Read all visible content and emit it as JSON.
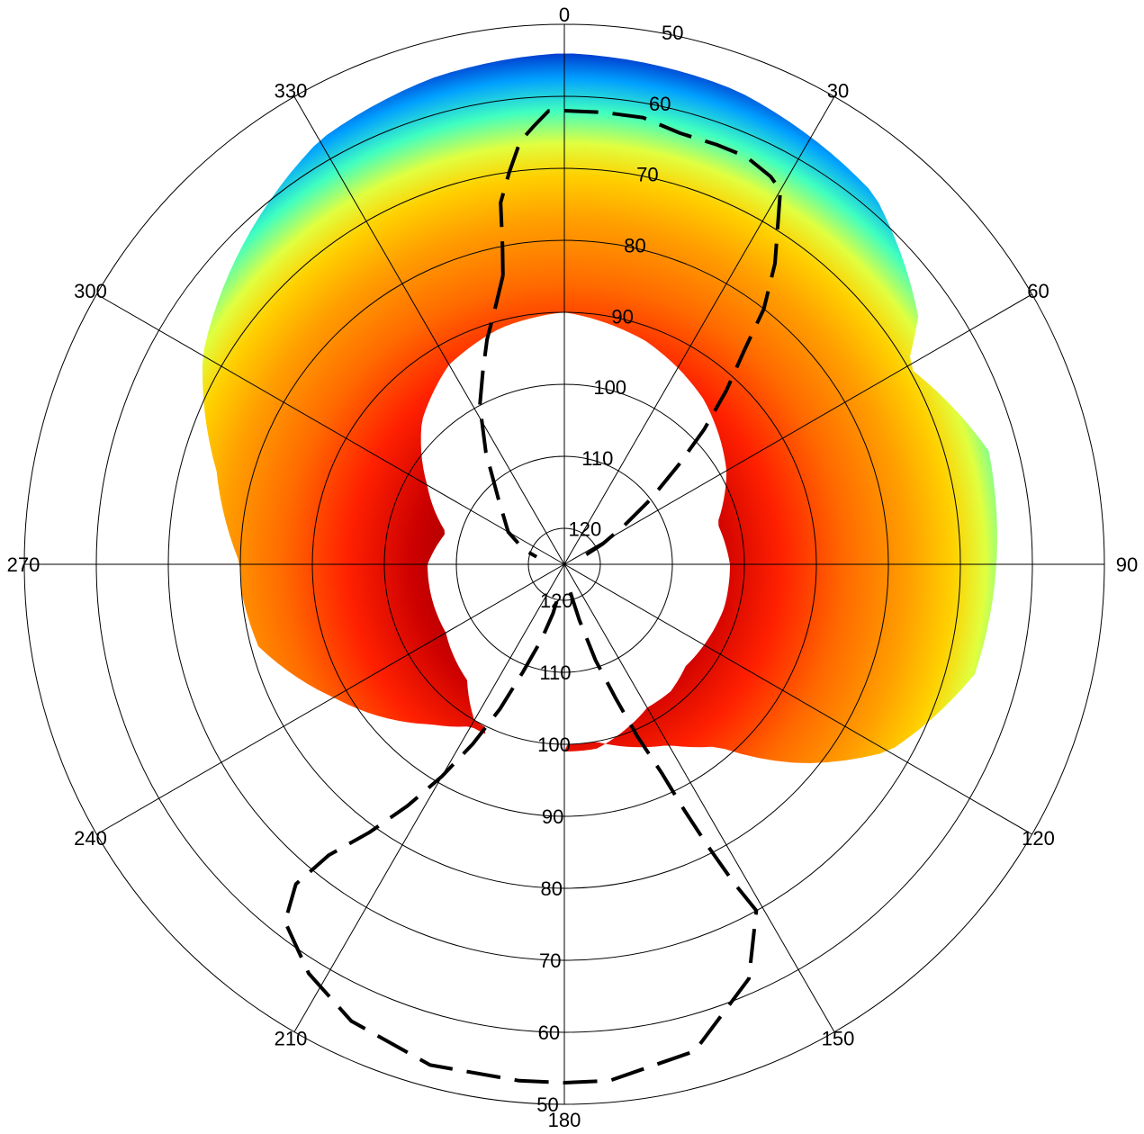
{
  "chart_data": {
    "type": "heatmap",
    "projection": "polar",
    "title": "",
    "angular_axis": {
      "direction": "clockwise",
      "zero_at": "top",
      "tick_values": [
        0,
        30,
        60,
        90,
        120,
        150,
        180,
        210,
        240,
        270,
        300,
        330
      ],
      "tick_labels": [
        "0",
        "30",
        "60",
        "90",
        "120",
        "150",
        "180",
        "210",
        "240",
        "270",
        "300",
        "330"
      ]
    },
    "radial_axis": {
      "center_value": 125,
      "edge_value": 50,
      "ring_values": [
        120,
        110,
        100,
        90,
        80,
        70,
        60,
        50
      ],
      "upper_labels": [
        "120",
        "110",
        "100",
        "90",
        "80",
        "70",
        "60",
        "50"
      ],
      "lower_labels": [
        "120",
        "110",
        "100",
        "90",
        "80",
        "70",
        "60",
        "50"
      ]
    },
    "grid": true,
    "colormap": [
      "#00008f",
      "#0060ff",
      "#00d0ff",
      "#80ff80",
      "#ffff00",
      "#ffa000",
      "#ff4000",
      "#ff0000",
      "#800000"
    ],
    "colorbar": false,
    "band": {
      "description_values": "annular band of data from about 55 to 90 degrees radial value",
      "inner_boundary": [
        [
          0,
          90
        ],
        [
          20,
          92
        ],
        [
          40,
          95
        ],
        [
          60,
          99
        ],
        [
          75,
          103
        ],
        [
          90,
          102
        ],
        [
          105,
          102
        ],
        [
          130,
          103
        ],
        [
          140,
          102
        ],
        [
          150,
          102
        ],
        [
          170,
          99
        ],
        [
          180,
          99
        ],
        [
          210,
          100
        ],
        [
          220,
          104
        ],
        [
          240,
          106
        ],
        [
          255,
          106
        ],
        [
          270,
          106
        ],
        [
          285,
          108
        ],
        [
          300,
          103
        ],
        [
          315,
          97
        ],
        [
          330,
          93
        ],
        [
          345,
          91
        ],
        [
          360,
          90
        ]
      ],
      "outer_boundary": [
        [
          0,
          54
        ],
        [
          20,
          55
        ],
        [
          40,
          58
        ],
        [
          55,
          65
        ],
        [
          60,
          70
        ],
        [
          65,
          68
        ],
        [
          75,
          64
        ],
        [
          90,
          65
        ],
        [
          105,
          66
        ],
        [
          120,
          73
        ],
        [
          130,
          82
        ],
        [
          140,
          92
        ],
        [
          150,
          96
        ],
        [
          170,
          100
        ],
        [
          180,
          100
        ],
        [
          205,
          99
        ],
        [
          210,
          99
        ],
        [
          220,
          96
        ],
        [
          240,
          88
        ],
        [
          255,
          81
        ],
        [
          265,
          80
        ],
        [
          270,
          80
        ],
        [
          285,
          75
        ],
        [
          300,
          67
        ],
        [
          315,
          62
        ],
        [
          330,
          57
        ],
        [
          345,
          55
        ],
        [
          360,
          54
        ]
      ],
      "gap_degrees": [
        180,
        205
      ]
    },
    "dashed_curves": [
      {
        "name": "",
        "points": [
          [
            348,
            84
          ],
          [
            349,
            80
          ],
          [
            350,
            74
          ],
          [
            352,
            70
          ],
          [
            354,
            66
          ],
          [
            356,
            64
          ],
          [
            358,
            62
          ],
          [
            0,
            62
          ],
          [
            5,
            62
          ],
          [
            10,
            62
          ],
          [
            15,
            63
          ],
          [
            20,
            63
          ],
          [
            24,
            63
          ],
          [
            28,
            64
          ],
          [
            30,
            65
          ],
          [
            32,
            69
          ],
          [
            35,
            74
          ],
          [
            38,
            80
          ],
          [
            40,
            86
          ],
          [
            43,
            92
          ],
          [
            46,
            98
          ],
          [
            49,
            104
          ],
          [
            53,
            110
          ],
          [
            57,
            115
          ],
          [
            62,
            119
          ],
          [
            67,
            122
          ]
        ]
      },
      {
        "name": "",
        "points": [
          [
            348,
            84
          ],
          [
            345,
            88
          ],
          [
            341,
            92
          ],
          [
            337,
            96
          ],
          [
            332,
            100
          ],
          [
            325,
            106
          ],
          [
            315,
            112
          ],
          [
            300,
            116
          ],
          [
            290,
            119
          ],
          [
            285,
            121
          ]
        ]
      },
      {
        "name": "",
        "points": [
          [
            168,
            121
          ],
          [
            165,
            117
          ],
          [
            162,
            111
          ],
          [
            159,
            105
          ],
          [
            157,
            99
          ],
          [
            155,
            93
          ],
          [
            154,
            87
          ],
          [
            153,
            81
          ],
          [
            152,
            75
          ],
          [
            151,
            70
          ],
          [
            156,
            62
          ],
          [
            165,
            55
          ],
          [
            175,
            53
          ],
          [
            180,
            53
          ],
          [
            185,
            53
          ],
          [
            195,
            53
          ],
          [
            205,
            55
          ],
          [
            212,
            58
          ],
          [
            218,
            62
          ],
          [
            220,
            67
          ],
          [
            219,
            73
          ],
          [
            216,
            79
          ],
          [
            213,
            85
          ],
          [
            210,
            91
          ],
          [
            207,
            97
          ],
          [
            204,
            103
          ],
          [
            201,
            109
          ],
          [
            197,
            114
          ],
          [
            193,
            118
          ],
          [
            190,
            121
          ]
        ]
      }
    ]
  }
}
